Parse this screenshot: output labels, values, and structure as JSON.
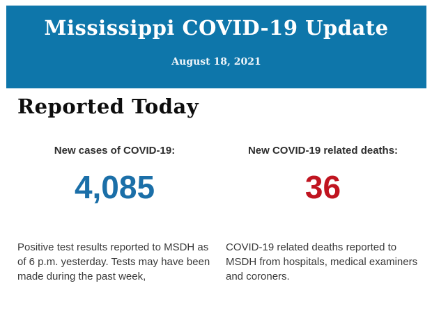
{
  "header": {
    "title": "Mississippi COVID-19 Update",
    "date": "August 18, 2021",
    "background_color": "#0e76aa",
    "text_color": "#ffffff"
  },
  "section": {
    "heading": "Reported Today"
  },
  "stats": [
    {
      "label": "New cases of COVID-19:",
      "value": "4,085",
      "value_color": "#1b6fa8",
      "description": "Positive test results reported to MSDH as of 6 p.m. yesterday. Tests may have been made during the past week,"
    },
    {
      "label": "New COVID-19 related deaths:",
      "value": "36",
      "value_color": "#c01420",
      "description": "COVID-19 related deaths reported to MSDH from hospitals, medical examiners and coroners."
    }
  ]
}
